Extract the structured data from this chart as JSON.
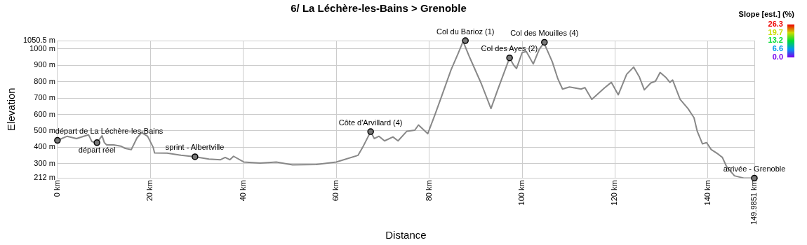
{
  "chart_data": {
    "type": "line",
    "title": "6/ La Léchère-les-Bains > Grenoble",
    "xlabel": "Distance",
    "ylabel": "Elevation",
    "clabel": "Slope [est.] (%)",
    "clim": [
      0,
      26.3
    ],
    "cticks": [
      {
        "value": 0,
        "label": "0.0"
      },
      6.6,
      13.2,
      19.7,
      26.3
    ],
    "xlim": [
      0,
      149.9851
    ],
    "xticks": [
      {
        "value": 0,
        "label": "0 km"
      },
      {
        "value": 20,
        "label": "20 km"
      },
      {
        "value": 40,
        "label": "40 km"
      },
      {
        "value": 60,
        "label": "60 km"
      },
      {
        "value": 80,
        "label": "80 km"
      },
      {
        "value": 100,
        "label": "100 km"
      },
      {
        "value": 120,
        "label": "120 km"
      },
      {
        "value": 140,
        "label": "140 km"
      },
      {
        "value": 149.9851,
        "label": "149.9851 km"
      }
    ],
    "ylim": [
      212,
      1050.5
    ],
    "yticks": [
      {
        "value": 212,
        "label": "212 m"
      },
      {
        "value": 300,
        "label": "300 m"
      },
      {
        "value": 400,
        "label": "400 m"
      },
      {
        "value": 500,
        "label": "500 m"
      },
      {
        "value": 600,
        "label": "600 m"
      },
      {
        "value": 700,
        "label": "700 m"
      },
      {
        "value": 800,
        "label": "800 m"
      },
      {
        "value": 900,
        "label": "900 m"
      },
      {
        "value": 1000,
        "label": "1000 m"
      },
      {
        "value": 1050.5,
        "label": "1050.5 m"
      }
    ],
    "grid": true,
    "legend": false,
    "marker": "none",
    "line_style": "solid",
    "series": [
      {
        "color": "#888888",
        "x": [
          0,
          2.1,
          4.1,
          6.7,
          7.4,
          8.5,
          9.6,
          10.1,
          10.6,
          12.1,
          13.6,
          14.6,
          15.9,
          17.1,
          18.1,
          19.4,
          20.6,
          20.9,
          23.6,
          26.6,
          29.6,
          32.6,
          35.1,
          36.1,
          37.1,
          37.9,
          40.1,
          43.6,
          47.1,
          50.6,
          55.7,
          60,
          64.7,
          65.7,
          67.4,
          68.2,
          69.2,
          70.4,
          72.2,
          73.3,
          75.2,
          76.9,
          77.7,
          79.7,
          81.2,
          82.7,
          84.7,
          86.2,
          87.3,
          88.7,
          91.2,
          93.3,
          94.7,
          97.3,
          98.2,
          98.8,
          100,
          100.9,
          102.4,
          103.7,
          104.7,
          105,
          106.5,
          107.7,
          108.7,
          110.2,
          112.7,
          113.5,
          115,
          117.7,
          119.2,
          120.7,
          122.5,
          124,
          125.2,
          126.3,
          127.7,
          128.7,
          129.7,
          131,
          131.8,
          132.4,
          134,
          135.7,
          137,
          137.7,
          138.8,
          139.7,
          140.7,
          142.2,
          143.1,
          144,
          145.7,
          147.7,
          149.9851
        ],
        "values": [
          442,
          467,
          453,
          476,
          435,
          428,
          470,
          428,
          414,
          414,
          407,
          393,
          386,
          456,
          490,
          467,
          400,
          365,
          364,
          351,
          342,
          328,
          324,
          338,
          324,
          345,
          310,
          303,
          310,
          293,
          295,
          310,
          351,
          400,
          495,
          453,
          467,
          439,
          463,
          439,
          498,
          504,
          536,
          483,
          595,
          713,
          872,
          970,
          1046,
          949,
          789,
          636,
          747,
          945,
          900,
          880,
          977,
          984,
          908,
          998,
          1037,
          1018,
          921,
          817,
          755,
          768,
          755,
          764,
          692,
          761,
          796,
          720,
          845,
          889,
          831,
          750,
          792,
          803,
          856,
          824,
          796,
          810,
          692,
          636,
          580,
          497,
          421,
          428,
          386,
          358,
          338,
          282,
          226,
          212,
          212
        ]
      }
    ],
    "annotations": [
      {
        "text": "départ de La Léchère-les-Bains",
        "x": 0,
        "y": 442
      },
      {
        "text": "départ réel",
        "x": 8.5,
        "y": 428
      },
      {
        "text": "sprint - Albertville",
        "x": 29.6,
        "y": 342
      },
      {
        "text": "Côte d'Arvillard (4)",
        "x": 67.4,
        "y": 495
      },
      {
        "text": "Col du Barioz (1)",
        "x": 87.8,
        "y": 1050
      },
      {
        "text": "Col des Ayes (2)",
        "x": 97.3,
        "y": 945
      },
      {
        "text": "Col des Mouilles (4)",
        "x": 104.8,
        "y": 1040
      },
      {
        "text": "arrivée - Grenoble",
        "x": 149.9851,
        "y": 212
      }
    ]
  }
}
